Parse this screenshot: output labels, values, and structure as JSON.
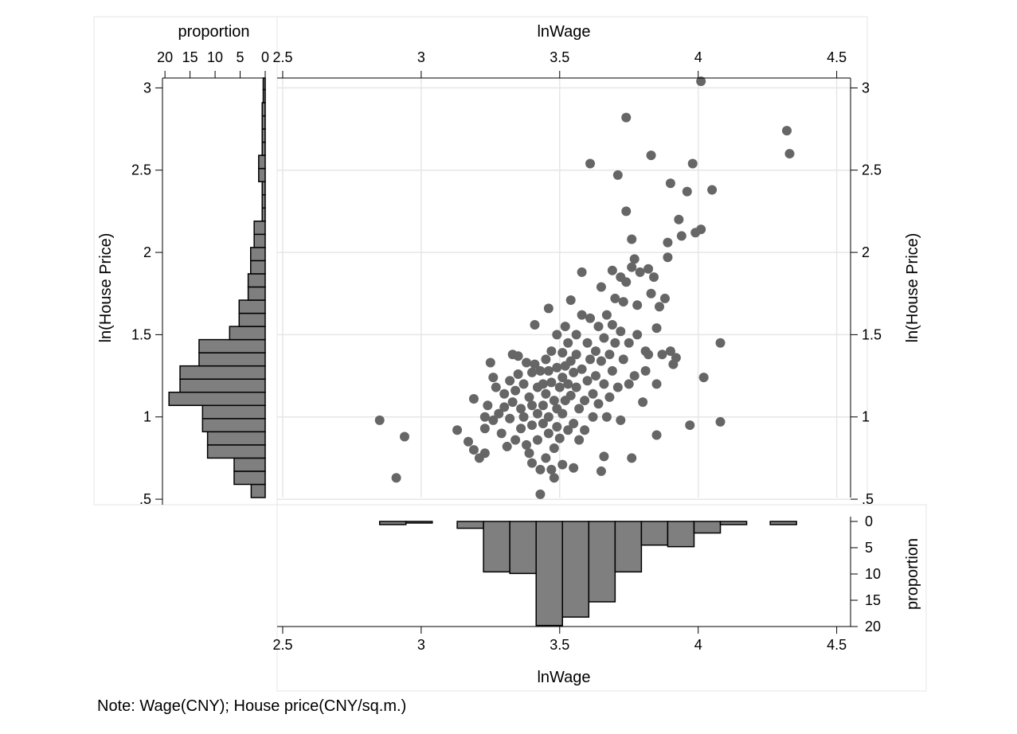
{
  "note": "Note: Wage(CNY); House price(CNY/sq.m.)",
  "colors": {
    "marker": "#666666",
    "bar": "#7f7f7f",
    "grid": "#e6e6e6",
    "panel_border": "#e6e6e6",
    "axis": "#000000"
  },
  "chart_data": [
    {
      "type": "scatter",
      "panel": "main",
      "xlabel": "lnWage",
      "ylabel": "ln(House Price)",
      "x_ticks": [
        "2.5",
        "3",
        "3.5",
        "4",
        "4.5"
      ],
      "y_ticks": [
        ".5",
        "1",
        "1.5",
        "2",
        "2.5",
        "3"
      ],
      "xlim": [
        2.48,
        4.55
      ],
      "ylim": [
        0.51,
        3.06
      ],
      "x_axis_position": "top",
      "y_axis_positions": [
        "left",
        "right"
      ],
      "grid": true,
      "points": [
        [
          2.85,
          0.98
        ],
        [
          2.94,
          0.88
        ],
        [
          2.91,
          0.63
        ],
        [
          3.13,
          0.92
        ],
        [
          3.17,
          0.85
        ],
        [
          3.19,
          0.8
        ],
        [
          3.21,
          0.75
        ],
        [
          3.19,
          1.11
        ],
        [
          3.23,
          0.78
        ],
        [
          3.23,
          0.93
        ],
        [
          3.23,
          1.0
        ],
        [
          3.24,
          1.07
        ],
        [
          3.25,
          1.33
        ],
        [
          3.26,
          1.24
        ],
        [
          3.26,
          0.98
        ],
        [
          3.27,
          1.18
        ],
        [
          3.28,
          1.02
        ],
        [
          3.29,
          0.9
        ],
        [
          3.3,
          1.14
        ],
        [
          3.3,
          1.06
        ],
        [
          3.31,
          0.82
        ],
        [
          3.32,
          1.22
        ],
        [
          3.32,
          0.99
        ],
        [
          3.33,
          1.38
        ],
        [
          3.33,
          1.09
        ],
        [
          3.34,
          0.86
        ],
        [
          3.34,
          1.16
        ],
        [
          3.35,
          1.37
        ],
        [
          3.35,
          1.26
        ],
        [
          3.36,
          1.05
        ],
        [
          3.36,
          0.93
        ],
        [
          3.37,
          1.2
        ],
        [
          3.37,
          1.0
        ],
        [
          3.38,
          1.33
        ],
        [
          3.38,
          0.83
        ],
        [
          3.39,
          1.12
        ],
        [
          3.39,
          0.78
        ],
        [
          3.4,
          1.27
        ],
        [
          3.4,
          1.07
        ],
        [
          3.4,
          0.95
        ],
        [
          3.4,
          0.72
        ],
        [
          3.41,
          1.56
        ],
        [
          3.41,
          1.32
        ],
        [
          3.42,
          1.18
        ],
        [
          3.42,
          1.02
        ],
        [
          3.42,
          0.86
        ],
        [
          3.43,
          1.28
        ],
        [
          3.43,
          0.68
        ],
        [
          3.43,
          0.53
        ],
        [
          3.44,
          1.2
        ],
        [
          3.44,
          1.07
        ],
        [
          3.44,
          0.96
        ],
        [
          3.45,
          1.35
        ],
        [
          3.45,
          1.14
        ],
        [
          3.45,
          0.75
        ],
        [
          3.46,
          1.66
        ],
        [
          3.46,
          1.28
        ],
        [
          3.46,
          1.0
        ],
        [
          3.46,
          0.9
        ],
        [
          3.47,
          1.4
        ],
        [
          3.47,
          1.21
        ],
        [
          3.47,
          0.68
        ],
        [
          3.48,
          1.1
        ],
        [
          3.48,
          0.81
        ],
        [
          3.48,
          0.63
        ],
        [
          3.49,
          1.5
        ],
        [
          3.49,
          1.3
        ],
        [
          3.49,
          1.05
        ],
        [
          3.49,
          0.94
        ],
        [
          3.5,
          1.18
        ],
        [
          3.5,
          0.87
        ],
        [
          3.51,
          1.39
        ],
        [
          3.51,
          1.24
        ],
        [
          3.51,
          1.02
        ],
        [
          3.51,
          0.71
        ],
        [
          3.52,
          1.55
        ],
        [
          3.52,
          1.31
        ],
        [
          3.52,
          1.1
        ],
        [
          3.53,
          1.45
        ],
        [
          3.53,
          1.2
        ],
        [
          3.53,
          0.92
        ],
        [
          3.54,
          1.71
        ],
        [
          3.54,
          1.34
        ],
        [
          3.54,
          1.13
        ],
        [
          3.55,
          1.27
        ],
        [
          3.55,
          0.96
        ],
        [
          3.55,
          0.69
        ],
        [
          3.56,
          1.5
        ],
        [
          3.56,
          1.38
        ],
        [
          3.56,
          1.18
        ],
        [
          3.57,
          1.05
        ],
        [
          3.57,
          0.86
        ],
        [
          3.58,
          1.88
        ],
        [
          3.58,
          1.62
        ],
        [
          3.58,
          1.29
        ],
        [
          3.59,
          1.1
        ],
        [
          3.59,
          0.92
        ],
        [
          3.6,
          1.45
        ],
        [
          3.6,
          1.22
        ],
        [
          3.61,
          2.54
        ],
        [
          3.61,
          1.6
        ],
        [
          3.61,
          1.35
        ],
        [
          3.62,
          1.14
        ],
        [
          3.62,
          1.0
        ],
        [
          3.63,
          1.4
        ],
        [
          3.63,
          1.25
        ],
        [
          3.64,
          1.55
        ],
        [
          3.64,
          1.08
        ],
        [
          3.65,
          1.79
        ],
        [
          3.65,
          1.34
        ],
        [
          3.65,
          0.67
        ],
        [
          3.66,
          1.48
        ],
        [
          3.66,
          1.2
        ],
        [
          3.66,
          0.76
        ],
        [
          3.67,
          1.62
        ],
        [
          3.67,
          1.0
        ],
        [
          3.68,
          1.38
        ],
        [
          3.68,
          1.12
        ],
        [
          3.69,
          1.89
        ],
        [
          3.69,
          1.56
        ],
        [
          3.69,
          1.28
        ],
        [
          3.7,
          1.72
        ],
        [
          3.7,
          1.45
        ],
        [
          3.71,
          2.47
        ],
        [
          3.71,
          1.18
        ],
        [
          3.72,
          1.85
        ],
        [
          3.72,
          1.52
        ],
        [
          3.72,
          0.98
        ],
        [
          3.73,
          1.35
        ],
        [
          3.73,
          1.7
        ],
        [
          3.74,
          2.82
        ],
        [
          3.74,
          2.25
        ],
        [
          3.74,
          1.82
        ],
        [
          3.75,
          1.45
        ],
        [
          3.75,
          1.2
        ],
        [
          3.76,
          2.08
        ],
        [
          3.76,
          1.91
        ],
        [
          3.76,
          0.75
        ],
        [
          3.77,
          1.96
        ],
        [
          3.77,
          1.25
        ],
        [
          3.78,
          1.68
        ],
        [
          3.78,
          1.5
        ],
        [
          3.79,
          1.88
        ],
        [
          3.8,
          1.09
        ],
        [
          3.81,
          1.4
        ],
        [
          3.81,
          1.28
        ],
        [
          3.82,
          1.9
        ],
        [
          3.82,
          1.38
        ],
        [
          3.83,
          2.59
        ],
        [
          3.83,
          1.75
        ],
        [
          3.84,
          1.85
        ],
        [
          3.85,
          1.54
        ],
        [
          3.85,
          1.2
        ],
        [
          3.85,
          0.89
        ],
        [
          3.86,
          1.67
        ],
        [
          3.87,
          1.38
        ],
        [
          3.88,
          1.72
        ],
        [
          3.89,
          2.06
        ],
        [
          3.89,
          1.97
        ],
        [
          3.9,
          2.42
        ],
        [
          3.9,
          1.4
        ],
        [
          3.91,
          1.32
        ],
        [
          3.92,
          1.36
        ],
        [
          3.93,
          2.2
        ],
        [
          3.94,
          2.1
        ],
        [
          3.96,
          2.37
        ],
        [
          3.97,
          0.95
        ],
        [
          3.98,
          2.54
        ],
        [
          3.99,
          2.12
        ],
        [
          4.01,
          3.04
        ],
        [
          4.01,
          2.14
        ],
        [
          4.02,
          1.24
        ],
        [
          4.05,
          2.38
        ],
        [
          4.08,
          1.45
        ],
        [
          4.08,
          0.97
        ],
        [
          4.32,
          2.74
        ],
        [
          4.33,
          2.6
        ]
      ]
    },
    {
      "type": "bar",
      "panel": "left-histogram",
      "orientation": "horizontal",
      "xlabel": "proportion",
      "x_ticks": [
        "20",
        "15",
        "10",
        "5",
        "0"
      ],
      "xlim": [
        0,
        20.5
      ],
      "x_axis_position": "top",
      "y_variable": "ln(House Price)",
      "bins": [
        {
          "from": 0.51,
          "to": 0.59,
          "value": 2.8
        },
        {
          "from": 0.59,
          "to": 0.67,
          "value": 6.2
        },
        {
          "from": 0.67,
          "to": 0.75,
          "value": 6.2
        },
        {
          "from": 0.75,
          "to": 0.83,
          "value": 11.5
        },
        {
          "from": 0.83,
          "to": 0.91,
          "value": 11.5
        },
        {
          "from": 0.91,
          "to": 0.99,
          "value": 12.5
        },
        {
          "from": 0.99,
          "to": 1.07,
          "value": 12.5
        },
        {
          "from": 1.07,
          "to": 1.15,
          "value": 19.2
        },
        {
          "from": 1.15,
          "to": 1.23,
          "value": 17.0
        },
        {
          "from": 1.23,
          "to": 1.31,
          "value": 17.0
        },
        {
          "from": 1.31,
          "to": 1.39,
          "value": 13.2
        },
        {
          "from": 1.39,
          "to": 1.47,
          "value": 13.2
        },
        {
          "from": 1.47,
          "to": 1.55,
          "value": 7.1
        },
        {
          "from": 1.55,
          "to": 1.63,
          "value": 5.2
        },
        {
          "from": 1.63,
          "to": 1.71,
          "value": 5.2
        },
        {
          "from": 1.71,
          "to": 1.79,
          "value": 3.4
        },
        {
          "from": 1.79,
          "to": 1.87,
          "value": 3.4
        },
        {
          "from": 1.87,
          "to": 1.95,
          "value": 2.9
        },
        {
          "from": 1.95,
          "to": 2.03,
          "value": 2.9
        },
        {
          "from": 2.03,
          "to": 2.11,
          "value": 2.2
        },
        {
          "from": 2.11,
          "to": 2.19,
          "value": 2.2
        },
        {
          "from": 2.19,
          "to": 2.27,
          "value": 0.6
        },
        {
          "from": 2.27,
          "to": 2.35,
          "value": 0.6
        },
        {
          "from": 2.35,
          "to": 2.43,
          "value": 0.6
        },
        {
          "from": 2.43,
          "to": 2.51,
          "value": 1.3
        },
        {
          "from": 2.51,
          "to": 2.59,
          "value": 1.3
        },
        {
          "from": 2.59,
          "to": 2.67,
          "value": 0.6
        },
        {
          "from": 2.67,
          "to": 2.75,
          "value": 0.6
        },
        {
          "from": 2.75,
          "to": 2.83,
          "value": 0.6
        },
        {
          "from": 2.83,
          "to": 2.91,
          "value": 0.6
        },
        {
          "from": 2.91,
          "to": 2.99,
          "value": 0.4
        },
        {
          "from": 2.99,
          "to": 3.06,
          "value": 0.4
        }
      ]
    },
    {
      "type": "bar",
      "panel": "bottom-histogram",
      "orientation": "vertical-inverted",
      "xlabel": "lnWage",
      "ylabel": "proportion",
      "x_ticks": [
        "2.5",
        "3",
        "3.5",
        "4",
        "4.5"
      ],
      "y_ticks": [
        "0",
        "5",
        "10",
        "15",
        "20"
      ],
      "ylim": [
        0,
        20
      ],
      "x_axis_position": "bottom",
      "y_axis_position": "right",
      "bins": [
        {
          "from": 2.85,
          "to": 2.945,
          "value": 0.6
        },
        {
          "from": 2.945,
          "to": 3.04,
          "value": 0.3
        },
        {
          "from": 3.13,
          "to": 3.225,
          "value": 1.3
        },
        {
          "from": 3.225,
          "to": 3.32,
          "value": 9.6
        },
        {
          "from": 3.32,
          "to": 3.415,
          "value": 9.9
        },
        {
          "from": 3.415,
          "to": 3.51,
          "value": 19.8
        },
        {
          "from": 3.51,
          "to": 3.605,
          "value": 18.2
        },
        {
          "from": 3.605,
          "to": 3.7,
          "value": 15.3
        },
        {
          "from": 3.7,
          "to": 3.795,
          "value": 9.6
        },
        {
          "from": 3.795,
          "to": 3.89,
          "value": 4.5
        },
        {
          "from": 3.89,
          "to": 3.985,
          "value": 4.8
        },
        {
          "from": 3.985,
          "to": 4.08,
          "value": 2.2
        },
        {
          "from": 4.08,
          "to": 4.175,
          "value": 0.6
        },
        {
          "from": 4.26,
          "to": 4.355,
          "value": 0.6
        }
      ]
    }
  ]
}
